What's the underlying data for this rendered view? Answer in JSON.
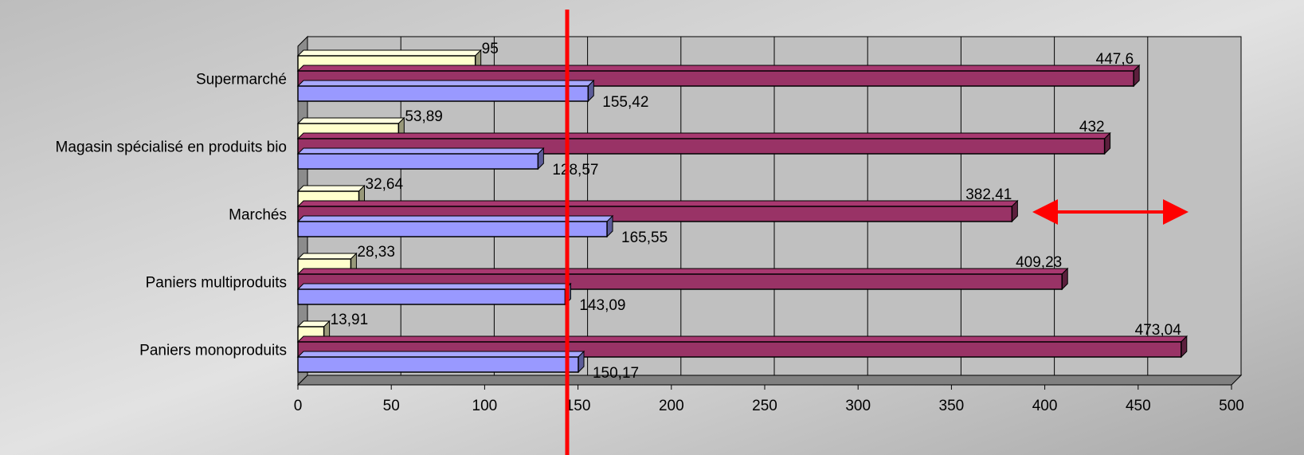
{
  "chart_data": {
    "type": "bar",
    "orientation": "horizontal",
    "categories": [
      "Supermarché",
      "Magasin spécialisé en produits bio",
      "Marchés",
      "Paniers multiproduits",
      "Paniers monoproduits"
    ],
    "series": [
      {
        "color": "#ffffcc",
        "values": [
          95,
          53.89,
          32.64,
          28.33,
          13.91
        ],
        "value_labels": [
          "95",
          "53,89",
          "32,64",
          "28,33",
          "13,91"
        ]
      },
      {
        "color": "#993366",
        "values": [
          447.6,
          432,
          382.41,
          409.23,
          473.04
        ],
        "value_labels": [
          "447,6",
          "432",
          "382,41",
          "409,23",
          "473,04"
        ]
      },
      {
        "color": "#9999ff",
        "values": [
          155.42,
          128.57,
          165.55,
          143.09,
          150.17
        ],
        "value_labels": [
          "155,42",
          "128,57",
          "165,55",
          "143,09",
          "150,17"
        ]
      }
    ],
    "xlim": [
      0,
      500
    ],
    "xticks": [
      0,
      50,
      100,
      150,
      200,
      250,
      300,
      350,
      400,
      450,
      500
    ],
    "grid": true
  }
}
